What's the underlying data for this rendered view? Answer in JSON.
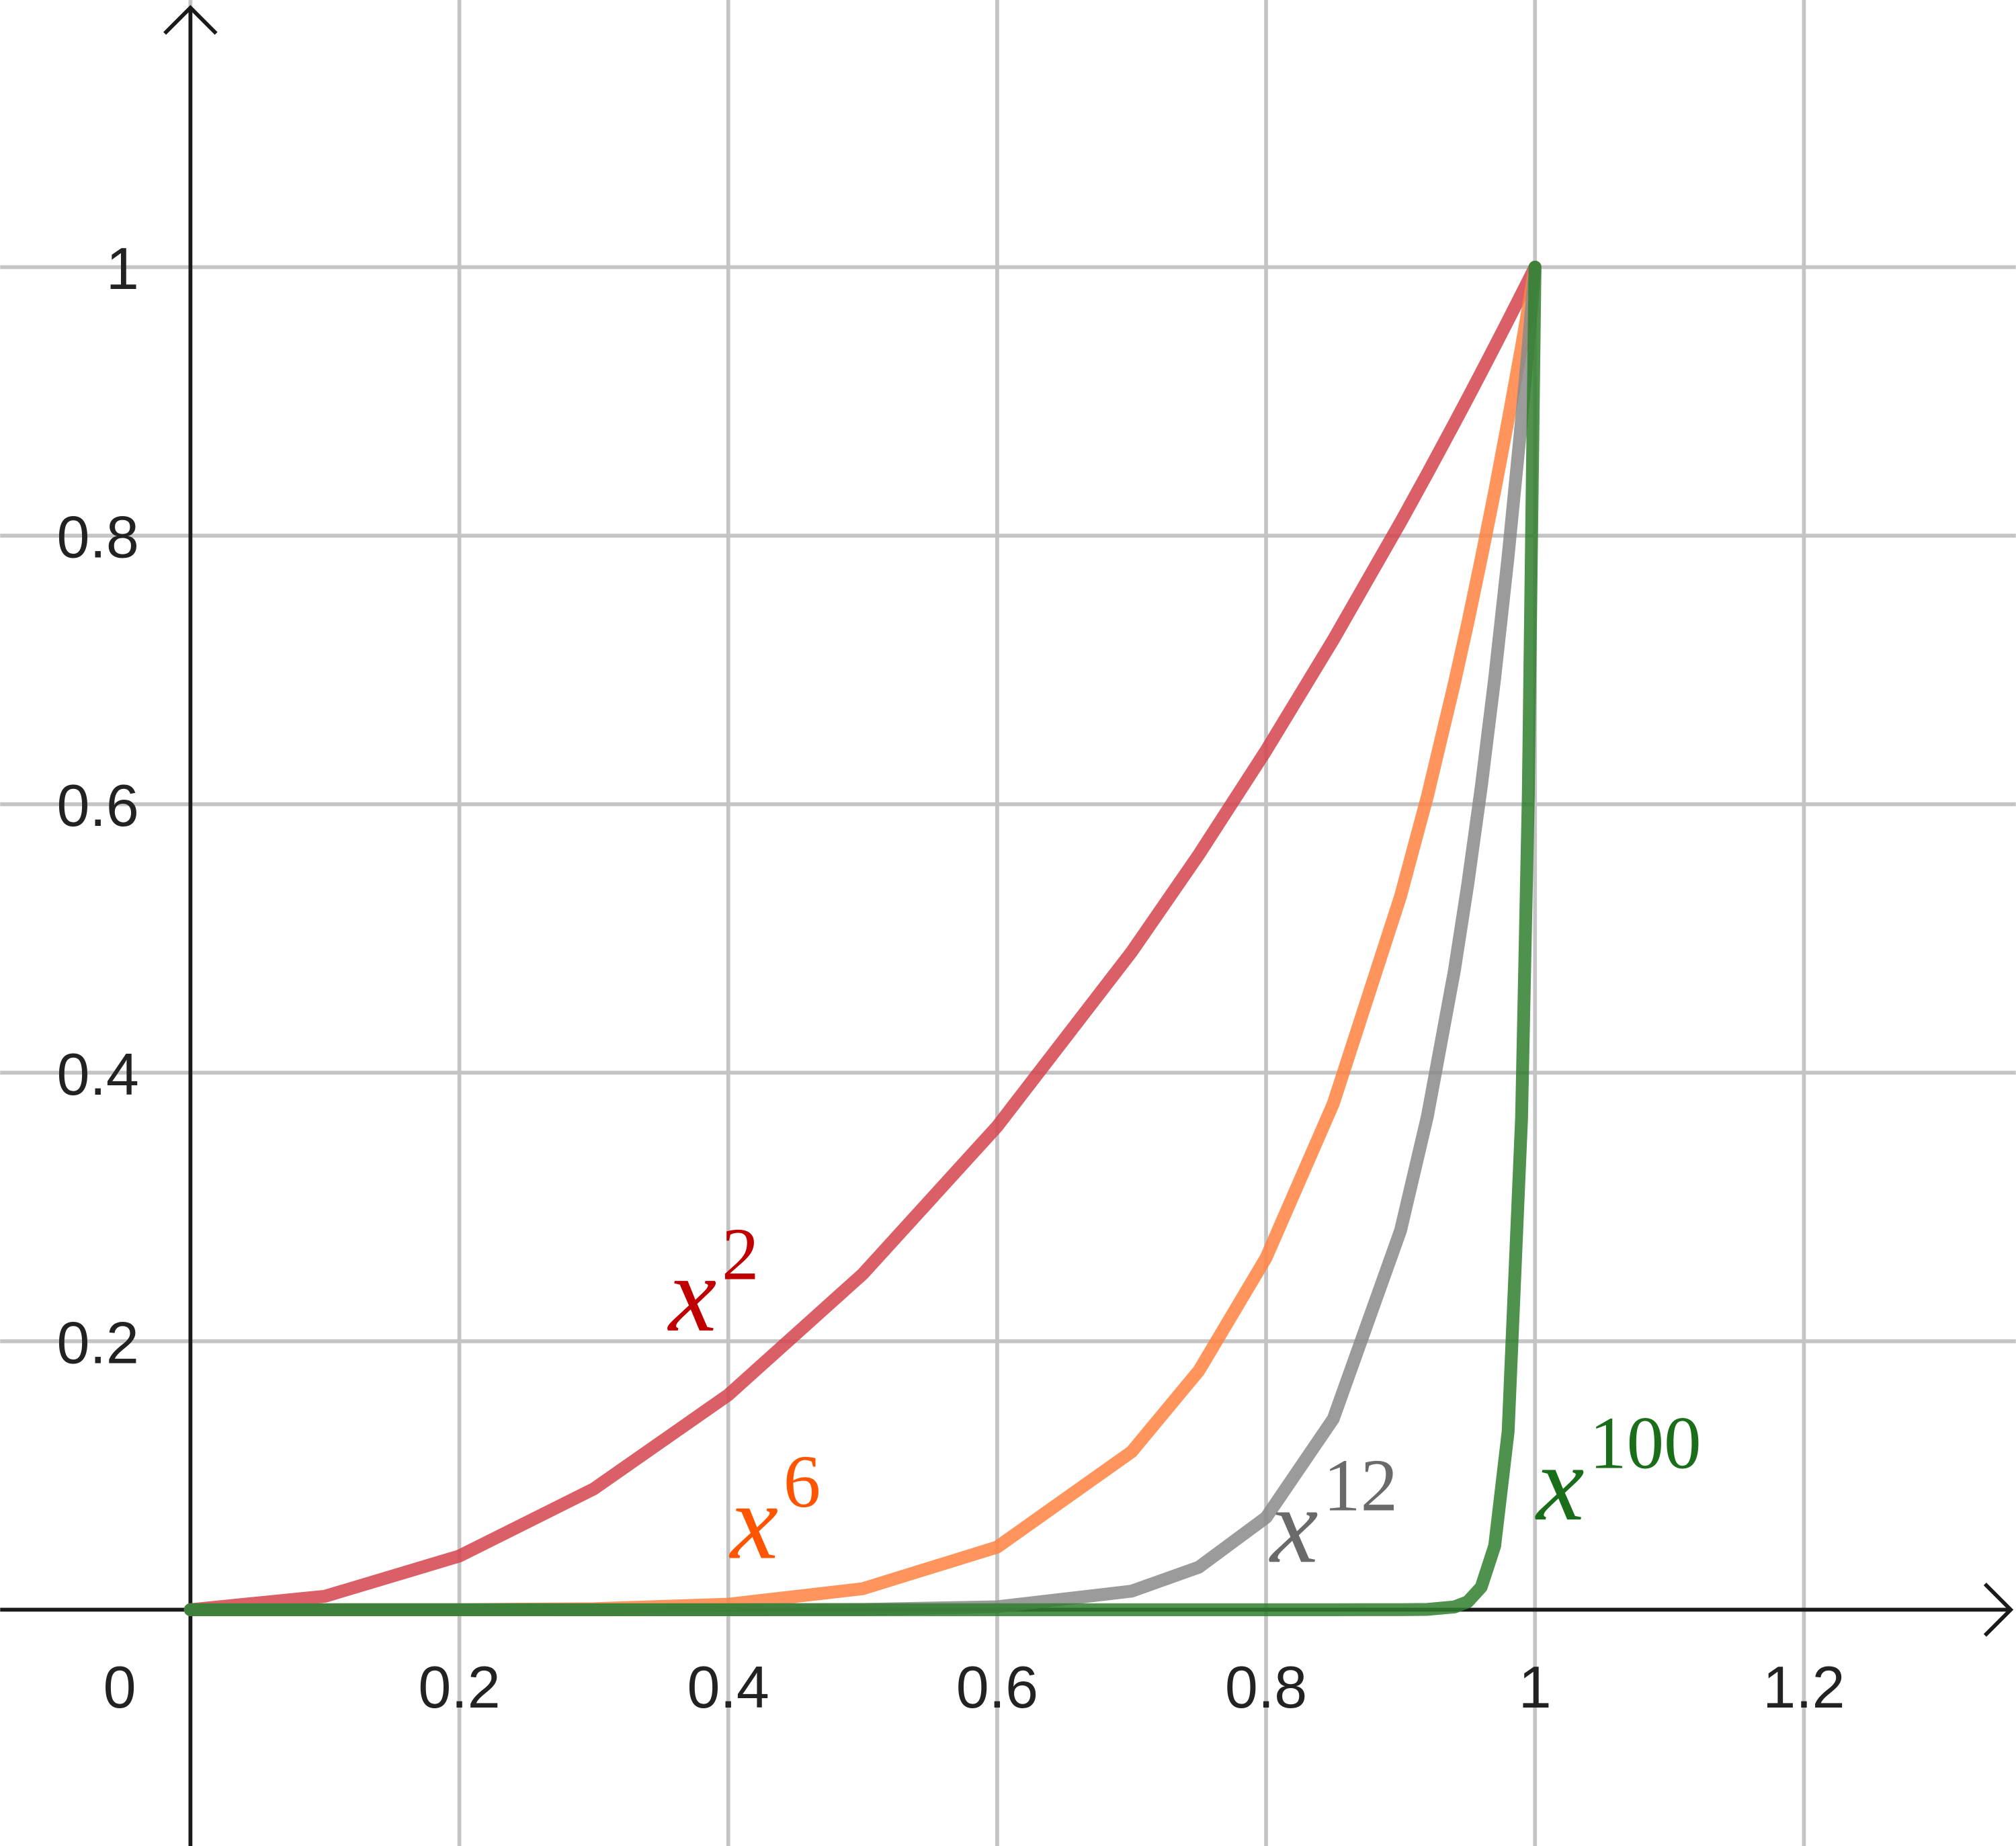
{
  "chart_data": {
    "type": "line",
    "x": [
      0,
      0.1,
      0.2,
      0.3,
      0.4,
      0.5,
      0.6,
      0.7,
      0.75,
      0.8,
      0.85,
      0.9,
      0.92,
      0.94,
      0.95,
      0.96,
      0.97,
      0.98,
      0.99,
      0.995,
      1
    ],
    "series": [
      {
        "label_base": "x",
        "label_exponent": "2",
        "color": "#d4434b",
        "label_color": "#c00000",
        "values": [
          0,
          0.01,
          0.04,
          0.09,
          0.16,
          0.25,
          0.36,
          0.49,
          0.5625,
          0.64,
          0.7225,
          0.81,
          0.8464,
          0.8836,
          0.9025,
          0.9216,
          0.9409,
          0.9604,
          0.9801,
          0.990025,
          1
        ]
      },
      {
        "label_base": "x",
        "label_exponent": "6",
        "color": "#ff8340",
        "label_color": "#ff5500",
        "values": [
          0,
          1e-06,
          6.4e-05,
          0.000729,
          0.004096,
          0.015625,
          0.046656,
          0.117649,
          0.178,
          0.262144,
          0.377,
          0.531441,
          0.606,
          0.69,
          0.735,
          0.783,
          0.833,
          0.886,
          0.941,
          0.97,
          1
        ]
      },
      {
        "label_base": "x",
        "label_exponent": "12",
        "color": "#8a8a8a",
        "label_color": "#6a6a6a",
        "values": [
          0,
          0,
          0,
          1e-06,
          1.68e-05,
          0.000244,
          0.002177,
          0.013841,
          0.03168,
          0.068719,
          0.142242,
          0.28243,
          0.3677,
          0.4759,
          0.5404,
          0.6127,
          0.6938,
          0.7847,
          0.8864,
          0.9416,
          1
        ]
      },
      {
        "label_base": "x",
        "label_exponent": "100",
        "color": "#2f7f2f",
        "label_color": "#1a6e1a",
        "values": [
          0,
          0,
          0,
          0,
          0,
          0,
          0,
          0,
          0,
          0,
          0,
          2.66e-05,
          0.000239,
          0.00205,
          0.00592,
          0.01687,
          0.04755,
          0.1326,
          0.366,
          0.6058,
          1
        ]
      }
    ],
    "xlim": [
      -0.1415,
      1.3576
    ],
    "ylim": [
      -0.176,
      1.199
    ],
    "xticks": [
      0,
      0.2,
      0.4,
      0.6,
      0.8,
      1,
      1.2
    ],
    "yticks": [
      0.2,
      0.4,
      0.6,
      0.8,
      1
    ],
    "grid": true
  }
}
